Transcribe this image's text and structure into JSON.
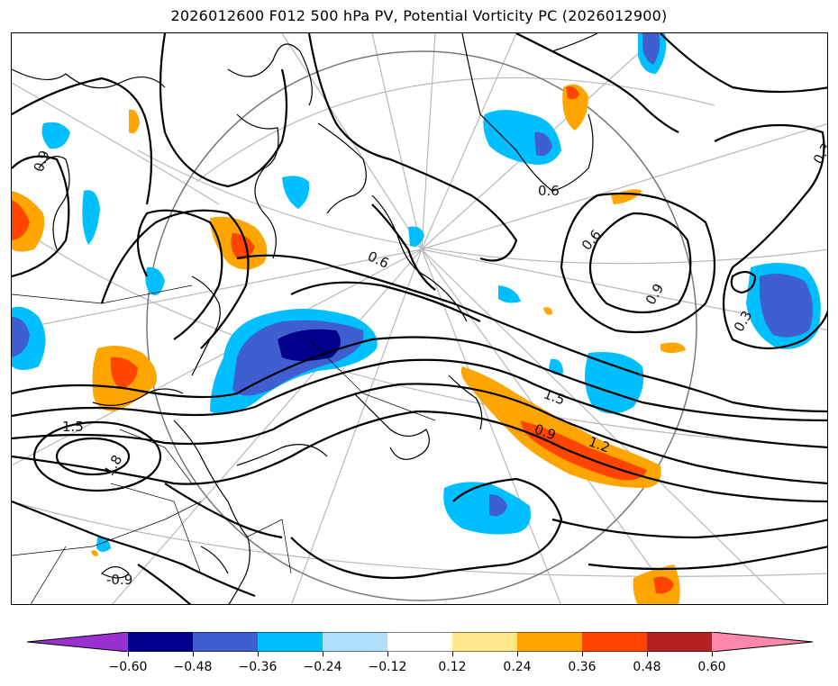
{
  "title": "2026012600 F012 500 hPa PV, Potential Vorticity PC (2026012900)",
  "contour_labels": [
    "-0.9",
    "1.5",
    "1.8",
    "0.6",
    "0.6",
    "0.9",
    "0.3",
    "1.5",
    "1.2",
    "0.9",
    "0.6",
    "0.9",
    "0.3"
  ],
  "colorbar": {
    "ticks": [
      "−0.60",
      "−0.48",
      "−0.36",
      "−0.24",
      "−0.12",
      "0.12",
      "0.24",
      "0.36",
      "0.48",
      "0.60"
    ],
    "colors": {
      "below": "#9b30d0",
      "bins": [
        "#00008b",
        "#3f5fd0",
        "#00bfff",
        "#b0e0ff",
        "#ffffff",
        "#ffe88a",
        "#ffa500",
        "#ff4500",
        "#b22222"
      ],
      "above": "#ff88aa"
    }
  },
  "shading_colors": {
    "neg_strong": "#00008b",
    "neg_mid": "#3f5fd0",
    "neg_weak": "#00bfff",
    "pos_weak": "#ffa500",
    "pos_mid": "#ff4500",
    "coast": "#000000",
    "graticule": "#b5b5b5",
    "circle": "#777777"
  }
}
